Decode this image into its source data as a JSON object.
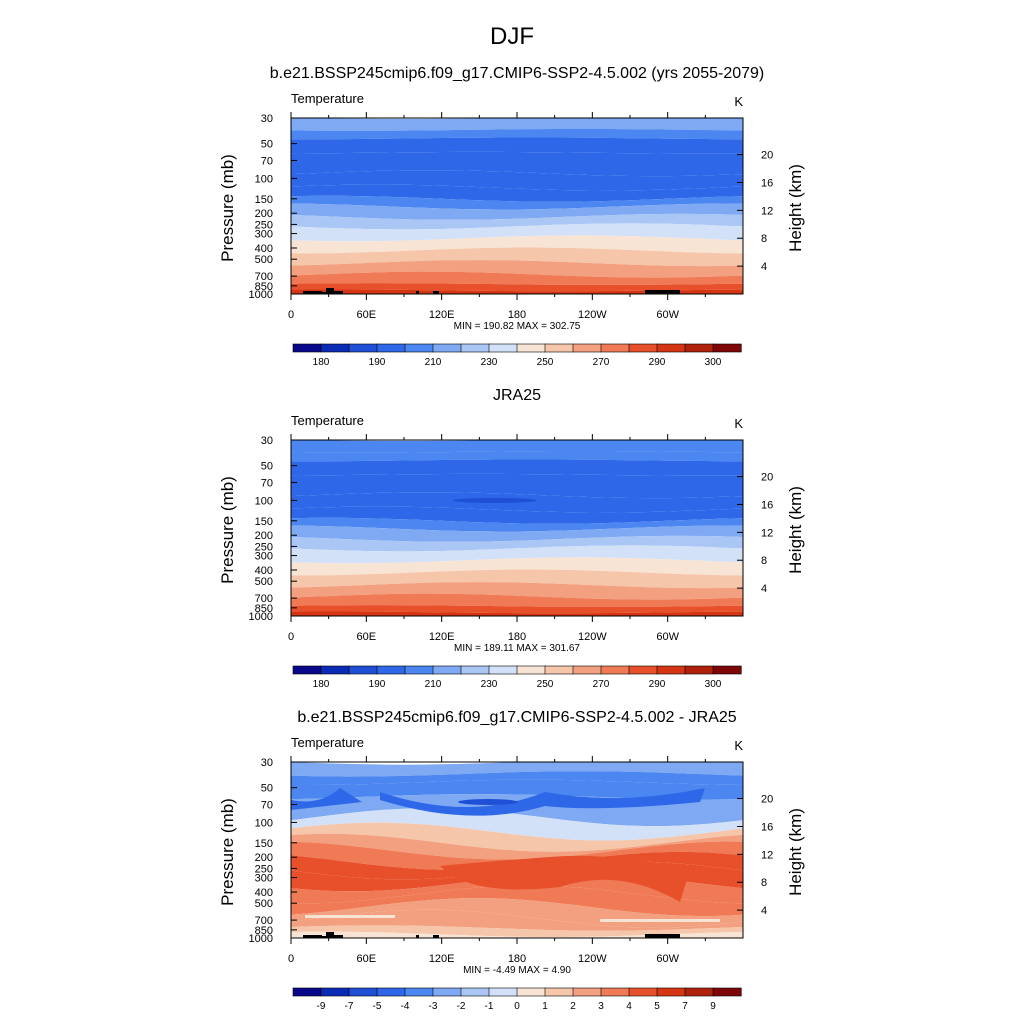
{
  "figure_title": "DJF",
  "chart_data": [
    {
      "type": "heatmap",
      "title": "b.e21.BSSP245cmip6.f09_g17.CMIP6-SSP2-4.5.002 (yrs 2055-2079)",
      "left_label": "Temperature",
      "units": "K",
      "ylabel": "Pressure (mb)",
      "ylabel_right": "Height (km)",
      "x_ticks": [
        "0",
        "60E",
        "120E",
        "180",
        "120W",
        "60W"
      ],
      "y_ticks": [
        "30",
        "50",
        "70",
        "100",
        "150",
        "200",
        "250",
        "300",
        "400",
        "500",
        "700",
        "850",
        "1000"
      ],
      "y_ticks_right": [
        "20",
        "16",
        "12",
        "8",
        "4"
      ],
      "stats": "MIN = 190.82  MAX = 302.75",
      "levels": [
        180,
        185,
        190,
        200,
        210,
        220,
        230,
        240,
        250,
        260,
        270,
        280,
        290,
        295,
        300
      ],
      "colorbar_labels": [
        "180",
        "190",
        "210",
        "230",
        "250",
        "270",
        "290",
        "300"
      ],
      "colorbar_colors": [
        "#08088a",
        "#0a2bb5",
        "#1f4fd6",
        "#2e68e8",
        "#4c86f0",
        "#7fa9f2",
        "#a9c6f5",
        "#d2e1f8",
        "#f8e4d4",
        "#f6c6ab",
        "#f2a07f",
        "#ef7a55",
        "#e8502c",
        "#d53512",
        "#b0210c",
        "#7f0606"
      ],
      "layer_fill_indices": [
        5,
        4,
        3,
        3,
        3,
        3,
        4,
        5,
        6,
        7,
        8,
        9,
        10,
        11,
        12,
        13
      ]
    },
    {
      "type": "heatmap",
      "title": "JRA25",
      "left_label": "Temperature",
      "units": "K",
      "ylabel": "Pressure (mb)",
      "ylabel_right": "Height (km)",
      "x_ticks": [
        "0",
        "60E",
        "120E",
        "180",
        "120W",
        "60W"
      ],
      "y_ticks": [
        "30",
        "50",
        "70",
        "100",
        "150",
        "200",
        "250",
        "300",
        "400",
        "500",
        "700",
        "850",
        "1000"
      ],
      "y_ticks_right": [
        "20",
        "16",
        "12",
        "8",
        "4"
      ],
      "stats": "MIN = 189.11  MAX = 301.67",
      "levels": [
        180,
        185,
        190,
        200,
        210,
        220,
        230,
        240,
        250,
        260,
        270,
        280,
        290,
        295,
        300
      ],
      "colorbar_labels": [
        "180",
        "190",
        "210",
        "230",
        "250",
        "270",
        "290",
        "300"
      ],
      "colorbar_colors": [
        "#08088a",
        "#0a2bb5",
        "#1f4fd6",
        "#2e68e8",
        "#4c86f0",
        "#7fa9f2",
        "#a9c6f5",
        "#d2e1f8",
        "#f8e4d4",
        "#f6c6ab",
        "#f2a07f",
        "#ef7a55",
        "#e8502c",
        "#d53512",
        "#b0210c",
        "#7f0606"
      ],
      "layer_fill_indices": [
        4,
        4,
        3,
        3,
        3,
        3,
        4,
        5,
        6,
        7,
        8,
        9,
        10,
        11,
        12,
        13
      ]
    },
    {
      "type": "heatmap",
      "title": "b.e21.BSSP245cmip6.f09_g17.CMIP6-SSP2-4.5.002 - JRA25",
      "left_label": "Temperature",
      "units": "K",
      "ylabel": "Pressure (mb)",
      "ylabel_right": "Height (km)",
      "x_ticks": [
        "0",
        "60E",
        "120E",
        "180",
        "120W",
        "60W"
      ],
      "y_ticks": [
        "30",
        "50",
        "70",
        "100",
        "150",
        "200",
        "250",
        "300",
        "400",
        "500",
        "700",
        "850",
        "1000"
      ],
      "y_ticks_right": [
        "20",
        "16",
        "12",
        "8",
        "4"
      ],
      "stats": "MIN =  -4.49  MAX =   4.90",
      "levels": [
        -9,
        -7,
        -5,
        -4,
        -3,
        -2,
        -1,
        0,
        1,
        2,
        3,
        4,
        5,
        7,
        9
      ],
      "colorbar_labels": [
        "-9",
        "-7",
        "-5",
        "-4",
        "-3",
        "-2",
        "-1",
        "0",
        "1",
        "2",
        "3",
        "4",
        "5",
        "7",
        "9"
      ],
      "colorbar_colors": [
        "#08088a",
        "#0a2bb5",
        "#1f4fd6",
        "#2e68e8",
        "#4c86f0",
        "#7fa9f2",
        "#a9c6f5",
        "#d2e1f8",
        "#f8e4d4",
        "#f6c6ab",
        "#f2a07f",
        "#ef7a55",
        "#e8502c",
        "#d53512",
        "#b0210c",
        "#7f0606"
      ],
      "layer_fill_indices": [
        5,
        4,
        4,
        5,
        7,
        9,
        10,
        11,
        12,
        12,
        11,
        11,
        10,
        10,
        9,
        8
      ]
    }
  ]
}
